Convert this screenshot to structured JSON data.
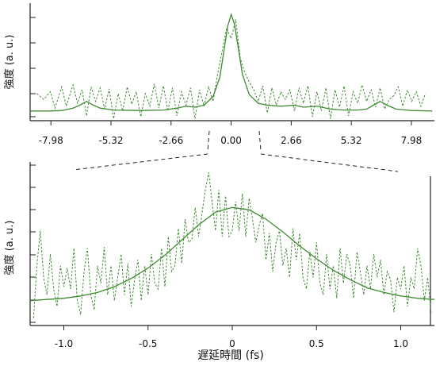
{
  "colors": {
    "fit": "#3f8a32",
    "measured": "#3f8a32",
    "axis": "#222222",
    "zoom_lines": "#222222"
  },
  "chart_data": [
    {
      "type": "line",
      "panel": "overview",
      "ylabel": "強度 (a. u.)",
      "xlabel": "",
      "x_ticks": [
        "-7.98",
        "-5.32",
        "-2.66",
        "0.00",
        "2.66",
        "5.32",
        "7.98"
      ],
      "xlim": [
        -8.9,
        9.0
      ],
      "ylim": [
        -0.1,
        1.1
      ],
      "grid": false,
      "legend": "none",
      "series": [
        {
          "style": "solid",
          "points": [
            [
              -8.9,
              0.0
            ],
            [
              -8.0,
              0.0
            ],
            [
              -7.5,
              0.005
            ],
            [
              -7.0,
              0.03
            ],
            [
              -6.7,
              0.06
            ],
            [
              -6.4,
              0.1
            ],
            [
              -6.1,
              0.06
            ],
            [
              -5.8,
              0.03
            ],
            [
              -5.2,
              0.01
            ],
            [
              -4.0,
              0.005
            ],
            [
              -3.0,
              0.01
            ],
            [
              -2.4,
              0.03
            ],
            [
              -2.0,
              0.05
            ],
            [
              -1.6,
              0.04
            ],
            [
              -1.2,
              0.06
            ],
            [
              -0.8,
              0.15
            ],
            [
              -0.5,
              0.35
            ],
            [
              -0.3,
              0.65
            ],
            [
              -0.15,
              0.88
            ],
            [
              0.0,
              1.0
            ],
            [
              0.15,
              0.9
            ],
            [
              0.3,
              0.68
            ],
            [
              0.5,
              0.38
            ],
            [
              0.8,
              0.17
            ],
            [
              1.2,
              0.08
            ],
            [
              1.6,
              0.06
            ],
            [
              2.2,
              0.05
            ],
            [
              2.8,
              0.06
            ],
            [
              3.2,
              0.04
            ],
            [
              3.8,
              0.05
            ],
            [
              4.4,
              0.02
            ],
            [
              5.0,
              0.01
            ],
            [
              5.6,
              0.01
            ],
            [
              6.0,
              0.02
            ],
            [
              6.3,
              0.06
            ],
            [
              6.6,
              0.1
            ],
            [
              6.9,
              0.06
            ],
            [
              7.3,
              0.02
            ],
            [
              8.0,
              0.005
            ],
            [
              8.9,
              0.0
            ]
          ]
        },
        {
          "style": "dashed",
          "points": [
            [
              -8.6,
              0.18
            ],
            [
              -8.3,
              0.12
            ],
            [
              -8.0,
              0.2
            ],
            [
              -7.8,
              0.03
            ],
            [
              -7.5,
              0.25
            ],
            [
              -7.3,
              0.05
            ],
            [
              -7.0,
              0.27
            ],
            [
              -6.8,
              0.08
            ],
            [
              -6.6,
              0.22
            ],
            [
              -6.4,
              -0.05
            ],
            [
              -6.2,
              0.25
            ],
            [
              -6.0,
              0.1
            ],
            [
              -5.8,
              0.24
            ],
            [
              -5.6,
              0.02
            ],
            [
              -5.4,
              0.23
            ],
            [
              -5.2,
              -0.08
            ],
            [
              -5.0,
              0.18
            ],
            [
              -4.8,
              0.0
            ],
            [
              -4.6,
              0.25
            ],
            [
              -4.4,
              0.07
            ],
            [
              -4.2,
              0.2
            ],
            [
              -4.0,
              -0.06
            ],
            [
              -3.8,
              0.18
            ],
            [
              -3.6,
              0.05
            ],
            [
              -3.4,
              0.28
            ],
            [
              -3.2,
              0.03
            ],
            [
              -3.0,
              0.26
            ],
            [
              -2.8,
              0.0
            ],
            [
              -2.6,
              0.24
            ],
            [
              -2.4,
              -0.05
            ],
            [
              -2.2,
              0.2
            ],
            [
              -2.0,
              0.06
            ],
            [
              -1.8,
              0.24
            ],
            [
              -1.6,
              -0.08
            ],
            [
              -1.4,
              0.22
            ],
            [
              -1.2,
              0.05
            ],
            [
              -1.0,
              0.25
            ],
            [
              -0.8,
              0.1
            ],
            [
              -0.6,
              0.38
            ],
            [
              -0.4,
              0.62
            ],
            [
              -0.2,
              0.86
            ],
            [
              0.0,
              0.75
            ],
            [
              0.2,
              0.95
            ],
            [
              0.4,
              0.55
            ],
            [
              0.6,
              0.4
            ],
            [
              0.8,
              0.3
            ],
            [
              1.0,
              0.22
            ],
            [
              1.2,
              0.1
            ],
            [
              1.4,
              0.26
            ],
            [
              1.6,
              -0.02
            ],
            [
              1.8,
              0.24
            ],
            [
              2.0,
              0.06
            ],
            [
              2.2,
              0.2
            ],
            [
              2.4,
              0.12
            ],
            [
              2.6,
              0.22
            ],
            [
              2.8,
              0.0
            ],
            [
              3.0,
              0.24
            ],
            [
              3.2,
              0.08
            ],
            [
              3.4,
              0.26
            ],
            [
              3.6,
              -0.06
            ],
            [
              3.8,
              0.2
            ],
            [
              4.0,
              0.0
            ],
            [
              4.2,
              0.24
            ],
            [
              4.4,
              -0.08
            ],
            [
              4.6,
              0.22
            ],
            [
              4.8,
              0.04
            ],
            [
              5.0,
              0.26
            ],
            [
              5.2,
              -0.05
            ],
            [
              5.4,
              0.2
            ],
            [
              5.6,
              0.08
            ],
            [
              5.8,
              0.27
            ],
            [
              6.0,
              0.1
            ],
            [
              6.2,
              0.22
            ],
            [
              6.4,
              0.04
            ],
            [
              6.6,
              0.24
            ],
            [
              6.8,
              0.02
            ],
            [
              7.0,
              0.12
            ],
            [
              7.2,
              0.16
            ],
            [
              7.4,
              0.25
            ],
            [
              7.6,
              0.05
            ],
            [
              7.8,
              0.22
            ],
            [
              8.0,
              0.1
            ],
            [
              8.2,
              0.2
            ],
            [
              8.4,
              0.05
            ],
            [
              8.6,
              0.18
            ]
          ]
        }
      ]
    },
    {
      "type": "line",
      "panel": "zoom",
      "ylabel": "強度 (a. u.)",
      "xlabel": "遅延時間 (fs)",
      "x_ticks": [
        "-1.0",
        "-0.5",
        "0",
        "0.5",
        "1.0"
      ],
      "xlim": [
        -1.2,
        1.2
      ],
      "ylim": [
        -0.2,
        1.15
      ],
      "grid": false,
      "legend": "none",
      "series": [
        {
          "style": "solid",
          "points": [
            [
              -1.2,
              0.0
            ],
            [
              -1.1,
              0.01
            ],
            [
              -1.0,
              0.02
            ],
            [
              -0.9,
              0.04
            ],
            [
              -0.8,
              0.07
            ],
            [
              -0.7,
              0.12
            ],
            [
              -0.6,
              0.19
            ],
            [
              -0.5,
              0.28
            ],
            [
              -0.4,
              0.39
            ],
            [
              -0.3,
              0.52
            ],
            [
              -0.2,
              0.65
            ],
            [
              -0.1,
              0.76
            ],
            [
              0.0,
              0.8
            ],
            [
              0.1,
              0.78
            ],
            [
              0.2,
              0.7
            ],
            [
              0.3,
              0.59
            ],
            [
              0.4,
              0.47
            ],
            [
              0.5,
              0.36
            ],
            [
              0.6,
              0.26
            ],
            [
              0.7,
              0.18
            ],
            [
              0.8,
              0.11
            ],
            [
              0.9,
              0.07
            ],
            [
              1.0,
              0.04
            ],
            [
              1.1,
              0.02
            ],
            [
              1.2,
              0.01
            ]
          ]
        },
        {
          "style": "dashed",
          "points": [
            [
              -1.18,
              -0.15
            ],
            [
              -1.16,
              0.3
            ],
            [
              -1.14,
              0.6
            ],
            [
              -1.12,
              0.2
            ],
            [
              -1.1,
              0.05
            ],
            [
              -1.08,
              0.4
            ],
            [
              -1.06,
              0.1
            ],
            [
              -1.04,
              -0.05
            ],
            [
              -1.02,
              0.3
            ],
            [
              -1.0,
              0.12
            ],
            [
              -0.98,
              0.28
            ],
            [
              -0.96,
              0.1
            ],
            [
              -0.94,
              0.45
            ],
            [
              -0.92,
              0.0
            ],
            [
              -0.9,
              -0.12
            ],
            [
              -0.88,
              0.25
            ],
            [
              -0.86,
              0.45
            ],
            [
              -0.84,
              0.05
            ],
            [
              -0.82,
              -0.08
            ],
            [
              -0.8,
              0.3
            ],
            [
              -0.78,
              0.15
            ],
            [
              -0.76,
              0.46
            ],
            [
              -0.74,
              0.05
            ],
            [
              -0.72,
              0.3
            ],
            [
              -0.7,
              0.0
            ],
            [
              -0.68,
              0.2
            ],
            [
              -0.66,
              0.4
            ],
            [
              -0.64,
              0.05
            ],
            [
              -0.62,
              0.32
            ],
            [
              -0.6,
              -0.05
            ],
            [
              -0.58,
              0.18
            ],
            [
              -0.56,
              0.35
            ],
            [
              -0.54,
              0.0
            ],
            [
              -0.52,
              0.3
            ],
            [
              -0.5,
              0.05
            ],
            [
              -0.48,
              0.4
            ],
            [
              -0.46,
              0.15
            ],
            [
              -0.44,
              0.1
            ],
            [
              -0.42,
              0.45
            ],
            [
              -0.4,
              0.12
            ],
            [
              -0.38,
              0.55
            ],
            [
              -0.36,
              0.25
            ],
            [
              -0.34,
              0.3
            ],
            [
              -0.32,
              0.62
            ],
            [
              -0.3,
              0.32
            ],
            [
              -0.28,
              0.7
            ],
            [
              -0.26,
              0.5
            ],
            [
              -0.24,
              0.52
            ],
            [
              -0.22,
              0.8
            ],
            [
              -0.2,
              0.55
            ],
            [
              -0.18,
              0.75
            ],
            [
              -0.16,
              0.95
            ],
            [
              -0.14,
              1.1
            ],
            [
              -0.12,
              0.85
            ],
            [
              -0.1,
              0.6
            ],
            [
              -0.08,
              0.95
            ],
            [
              -0.06,
              0.55
            ],
            [
              -0.04,
              0.9
            ],
            [
              -0.02,
              0.55
            ],
            [
              0.0,
              0.6
            ],
            [
              0.02,
              0.85
            ],
            [
              0.04,
              0.6
            ],
            [
              0.06,
              0.92
            ],
            [
              0.08,
              0.55
            ],
            [
              0.1,
              0.88
            ],
            [
              0.12,
              0.7
            ],
            [
              0.14,
              0.5
            ],
            [
              0.16,
              0.65
            ],
            [
              0.18,
              0.75
            ],
            [
              0.2,
              0.35
            ],
            [
              0.22,
              0.58
            ],
            [
              0.24,
              0.25
            ],
            [
              0.26,
              0.5
            ],
            [
              0.28,
              0.6
            ],
            [
              0.3,
              0.3
            ],
            [
              0.32,
              0.45
            ],
            [
              0.34,
              0.2
            ],
            [
              0.36,
              0.62
            ],
            [
              0.38,
              0.35
            ],
            [
              0.4,
              0.58
            ],
            [
              0.42,
              0.2
            ],
            [
              0.44,
              0.1
            ],
            [
              0.46,
              0.42
            ],
            [
              0.48,
              0.2
            ],
            [
              0.5,
              0.5
            ],
            [
              0.52,
              0.15
            ],
            [
              0.54,
              0.05
            ],
            [
              0.56,
              0.4
            ],
            [
              0.58,
              0.1
            ],
            [
              0.6,
              0.3
            ],
            [
              0.62,
              0.02
            ],
            [
              0.64,
              0.45
            ],
            [
              0.66,
              0.15
            ],
            [
              0.68,
              0.4
            ],
            [
              0.7,
              0.3
            ],
            [
              0.72,
              0.02
            ],
            [
              0.74,
              0.42
            ],
            [
              0.76,
              0.25
            ],
            [
              0.78,
              0.05
            ],
            [
              0.8,
              0.3
            ],
            [
              0.82,
              0.1
            ],
            [
              0.84,
              0.4
            ],
            [
              0.86,
              0.2
            ],
            [
              0.88,
              0.35
            ],
            [
              0.9,
              0.05
            ],
            [
              0.92,
              0.25
            ],
            [
              0.94,
              0.18
            ],
            [
              0.96,
              -0.1
            ],
            [
              0.98,
              0.2
            ],
            [
              1.0,
              0.1
            ],
            [
              1.02,
              0.3
            ],
            [
              1.04,
              -0.05
            ],
            [
              1.06,
              0.2
            ],
            [
              1.08,
              0.1
            ],
            [
              1.1,
              0.45
            ],
            [
              1.12,
              0.3
            ],
            [
              1.14,
              0.0
            ],
            [
              1.16,
              0.2
            ],
            [
              1.18,
              -0.1
            ]
          ]
        }
      ]
    }
  ]
}
